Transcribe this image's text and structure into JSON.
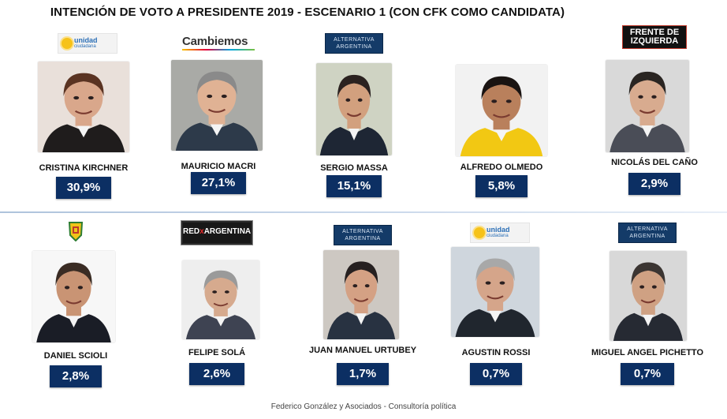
{
  "title": "INTENCIÓN DE VOTO A PRESIDENTE 2019 - ESCENARIO 1 (CON CFK COMO CANDIDATA)",
  "footer": "Federico González y Asociados - Consultoría política",
  "logos": {
    "unidad_ciudadana": {
      "line1": "unidad",
      "line2": "ciudadana"
    },
    "cambiemos": "Cambiemos",
    "alternativa_argentina": {
      "line1": "ALTERNATIVA",
      "line2": "ARGENTINA"
    },
    "frente_izquierda": {
      "line1": "FRENTE DE",
      "line2": "IZQUIERDA"
    },
    "red_argentina": {
      "prefix": "RED",
      "mark": "x",
      "suffix": "ARGENTINA"
    }
  },
  "chart_data": {
    "type": "bar",
    "title": "INTENCIÓN DE VOTO A PRESIDENTE 2019 - ESCENARIO 1 (CON CFK COMO CANDIDATA)",
    "categories": [
      "CRISTINA KIRCHNER",
      "MAURICIO MACRI",
      "SERGIO MASSA",
      "ALFREDO OLMEDO",
      "NICOLÁS DEL CAÑO",
      "DANIEL SCIOLI",
      "FELIPE SOLÁ",
      "JUAN MANUEL URTUBEY",
      "AGUSTIN ROSSI",
      "MIGUEL ANGEL PICHETTO"
    ],
    "values": [
      30.9,
      27.1,
      15.1,
      5.8,
      2.9,
      2.8,
      2.6,
      1.7,
      0.7,
      0.7
    ],
    "labels": [
      "30,9%",
      "27,1%",
      "15,1%",
      "5,8%",
      "2,9%",
      "2,8%",
      "2,6%",
      "1,7%",
      "0,7%",
      "0,7%"
    ],
    "parties": [
      "unidad_ciudadana",
      "cambiemos",
      "alternativa_argentina",
      "none",
      "frente_izquierda",
      "pj",
      "red_argentina",
      "alternativa_argentina",
      "unidad_ciudadana",
      "alternativa_argentina"
    ],
    "colors": {
      "label_box": "#0c2f63",
      "label_text": "#ffffff"
    }
  }
}
